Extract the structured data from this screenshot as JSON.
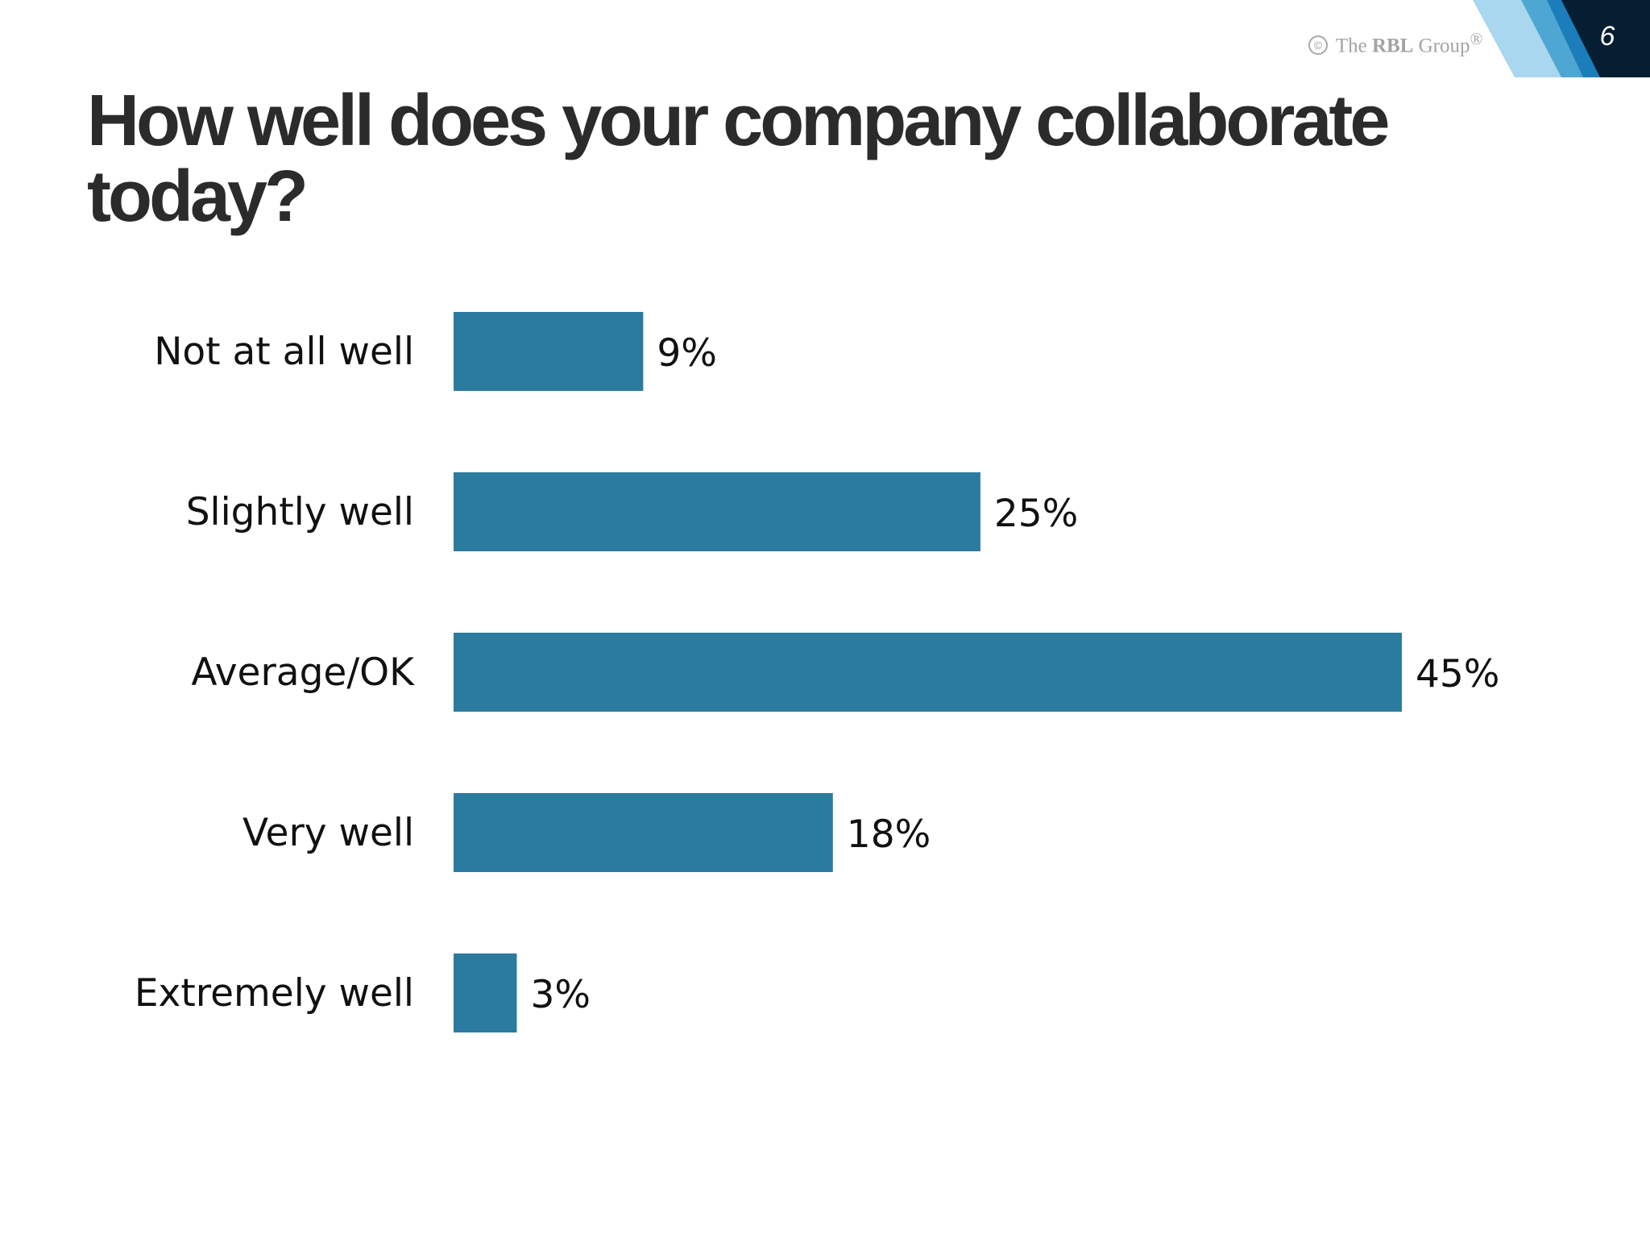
{
  "slide": {
    "title": "How well does your company collaborate today?",
    "page_number": "6",
    "brand": {
      "copyright_symbol": "©",
      "prefix": "The",
      "name": "RBL",
      "suffix": "Group",
      "trademark": "®"
    }
  },
  "colors": {
    "bar": "#2b7b9f",
    "text": "#111111",
    "title": "#2b2b2b",
    "corner_light_blue": "#a9d7ef",
    "corner_mid_blue": "#4ea7d3",
    "corner_blue": "#1b7db9",
    "corner_dark": "#061e32"
  },
  "chart_data": {
    "type": "bar",
    "orientation": "horizontal",
    "categories": [
      "Not at all well",
      "Slightly well",
      "Average/OK",
      "Very well",
      "Extremely well"
    ],
    "values": [
      9,
      25,
      45,
      18,
      3
    ],
    "data_labels": [
      "9%",
      "25%",
      "45%",
      "18%",
      "3%"
    ],
    "title": "",
    "xlabel": "",
    "ylabel": "",
    "xlim": [
      0,
      45
    ],
    "grid": false,
    "legend": "none"
  }
}
